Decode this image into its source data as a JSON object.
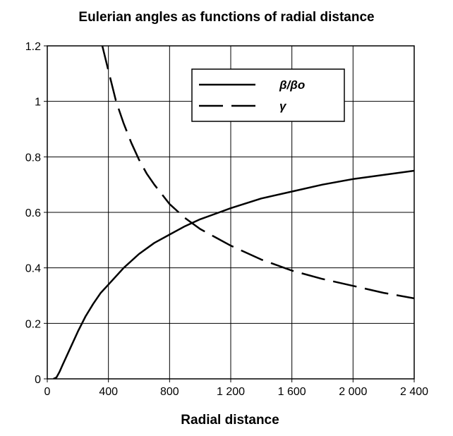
{
  "chart_data": {
    "type": "line",
    "title": "Eulerian angles as functions of radial distance",
    "xlabel": "Radial distance",
    "ylabel": "",
    "xlim": [
      0,
      2400
    ],
    "ylim": [
      0,
      1.2
    ],
    "x_ticks": [
      0,
      400,
      800,
      1200,
      1600,
      2000,
      2400
    ],
    "x_tick_labels": [
      "0",
      "400",
      "800",
      "1 200",
      "1 600",
      "2 000",
      "2 400"
    ],
    "y_ticks": [
      0,
      0.2,
      0.4,
      0.6,
      0.8,
      1.0,
      1.2
    ],
    "y_tick_labels": [
      "0",
      "0.2",
      "0.4",
      "0.6",
      "0.8",
      "1",
      "1.2"
    ],
    "grid": true,
    "legend_position": "top-right",
    "series": [
      {
        "name": "β/βo",
        "style": "solid",
        "color": "#000000",
        "x": [
          40,
          60,
          80,
          100,
          150,
          200,
          250,
          300,
          350,
          400,
          500,
          600,
          700,
          800,
          900,
          1000,
          1100,
          1200,
          1400,
          1600,
          1800,
          2000,
          2200,
          2400
        ],
        "y": [
          0.0,
          0.005,
          0.025,
          0.05,
          0.11,
          0.17,
          0.225,
          0.27,
          0.31,
          0.34,
          0.4,
          0.45,
          0.49,
          0.52,
          0.55,
          0.575,
          0.595,
          0.615,
          0.65,
          0.675,
          0.7,
          0.72,
          0.735,
          0.75
        ]
      },
      {
        "name": "γ",
        "style": "dashed",
        "color": "#000000",
        "x": [
          360,
          400,
          450,
          500,
          550,
          600,
          650,
          700,
          800,
          900,
          1000,
          1100,
          1200,
          1400,
          1600,
          1800,
          2000,
          2200,
          2400
        ],
        "y": [
          1.2,
          1.11,
          1.0,
          0.92,
          0.85,
          0.79,
          0.74,
          0.7,
          0.63,
          0.58,
          0.54,
          0.51,
          0.48,
          0.43,
          0.39,
          0.36,
          0.335,
          0.31,
          0.29
        ]
      }
    ]
  }
}
